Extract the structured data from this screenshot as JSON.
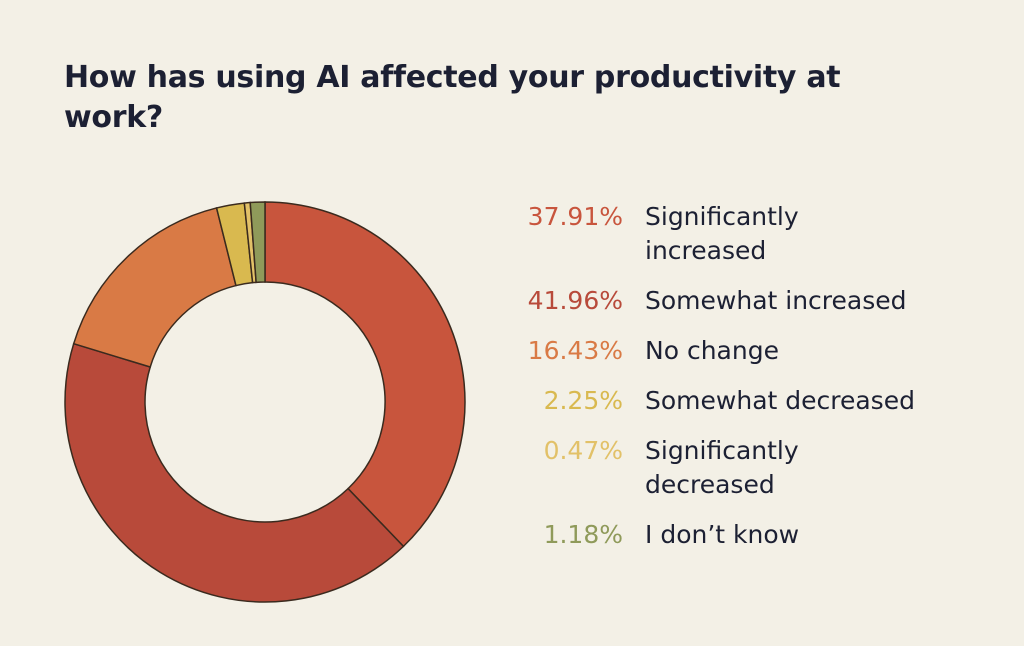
{
  "title": "How has using AI affected your productivity at work?",
  "chart_data": {
    "type": "pie",
    "donut": true,
    "title": "How has using AI affected your productivity at work?",
    "categories": [
      "Significantly increased",
      "Somewhat increased",
      "No change",
      "Somewhat decreased",
      "Significantly decreased",
      "I don’t know"
    ],
    "values": [
      37.91,
      41.96,
      16.43,
      2.25,
      0.47,
      1.18
    ],
    "labels": [
      "37.91%",
      "41.96%",
      "16.43%",
      "2.25%",
      "0.47%",
      "1.18%"
    ],
    "colors": [
      "#c8553d",
      "#b84a3a",
      "#d97a45",
      "#d9b94f",
      "#e2c168",
      "#8f9a5a"
    ],
    "legend": "right"
  }
}
